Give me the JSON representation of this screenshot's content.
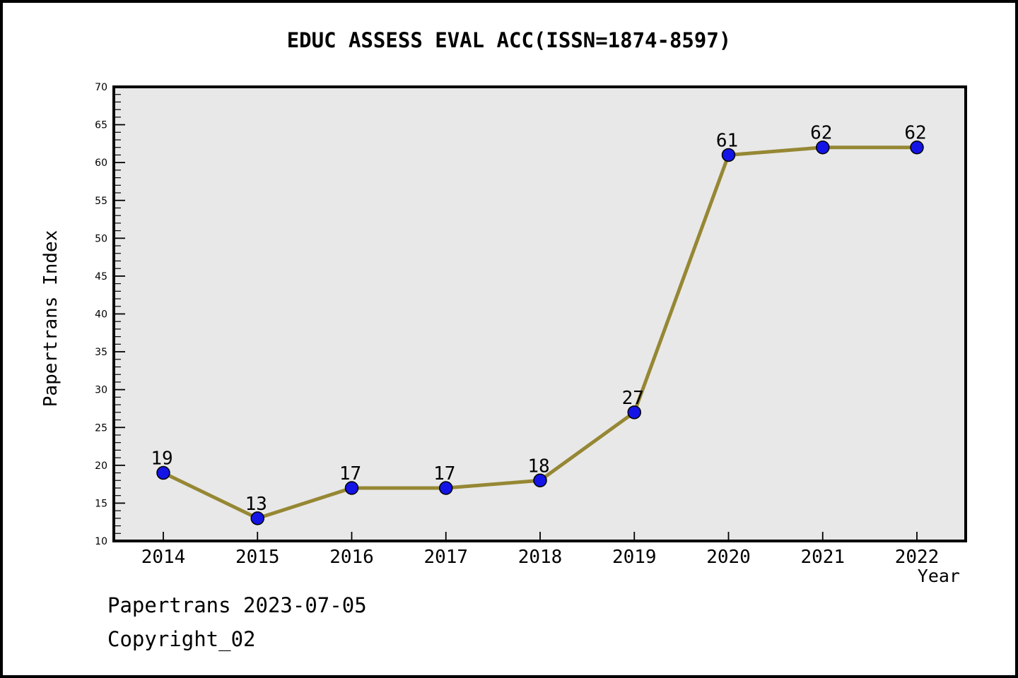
{
  "chart_data": {
    "type": "line",
    "title": "EDUC ASSESS EVAL ACC(ISSN=1874-8597)",
    "xlabel": "Year",
    "ylabel": "Papertrans Index",
    "x": [
      2014,
      2015,
      2016,
      2017,
      2018,
      2019,
      2020,
      2021,
      2022
    ],
    "series": [
      {
        "name": "Papertrans Index",
        "values": [
          19,
          13,
          17,
          17,
          18,
          27,
          61,
          62,
          62
        ]
      }
    ],
    "point_labels": [
      "19",
      "13",
      "17",
      "17",
      "18",
      "27",
      "61",
      "62",
      "62"
    ],
    "ylim": [
      10,
      70
    ],
    "ytick_step": 5,
    "yminor_step": 1,
    "grid": false,
    "legend": "none",
    "colors": {
      "line": "#968734",
      "marker_fill": "#1414e6",
      "marker_edge": "#000000",
      "plot_bg": "#e8e8e8",
      "frame": "#000000",
      "text": "#000000"
    }
  },
  "footer": {
    "line1": "Papertrans 2023-07-05",
    "line2": "Copyright_02"
  }
}
